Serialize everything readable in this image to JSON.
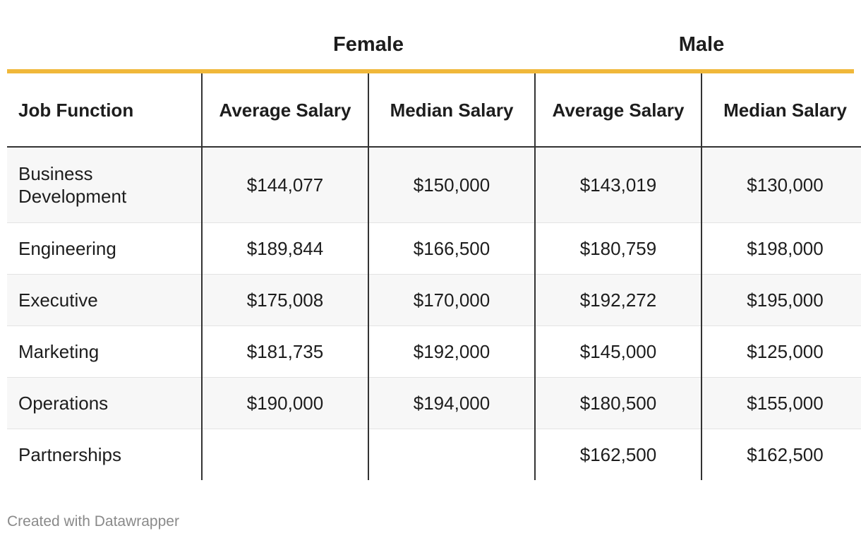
{
  "table": {
    "group_headers": [
      "Female",
      "Male"
    ],
    "accent_color": "#f0b83a",
    "column_headers": {
      "job": "Job Function",
      "female_avg": "Average Salary",
      "female_median": "Median Salary",
      "male_avg": "Average Salary",
      "male_median": "Median Salary"
    },
    "rows": [
      {
        "job": "Business Development",
        "female_avg": "$144,077",
        "female_median": "$150,000",
        "male_avg": "$143,019",
        "male_median": "$130,000"
      },
      {
        "job": "Engineering",
        "female_avg": "$189,844",
        "female_median": "$166,500",
        "male_avg": "$180,759",
        "male_median": "$198,000"
      },
      {
        "job": "Executive",
        "female_avg": "$175,008",
        "female_median": "$170,000",
        "male_avg": "$192,272",
        "male_median": "$195,000"
      },
      {
        "job": "Marketing",
        "female_avg": "$181,735",
        "female_median": "$192,000",
        "male_avg": "$145,000",
        "male_median": "$125,000"
      },
      {
        "job": "Operations",
        "female_avg": "$190,000",
        "female_median": "$194,000",
        "male_avg": "$180,500",
        "male_median": "$155,000"
      },
      {
        "job": "Partnerships",
        "female_avg": "",
        "female_median": "",
        "male_avg": "$162,500",
        "male_median": "$162,500"
      }
    ]
  },
  "chart_data": {
    "type": "table",
    "columns": [
      "Job Function",
      "Female Average Salary",
      "Female Median Salary",
      "Male Average Salary",
      "Male Median Salary"
    ],
    "rows": [
      [
        "Business Development",
        144077,
        150000,
        143019,
        130000
      ],
      [
        "Engineering",
        189844,
        166500,
        180759,
        198000
      ],
      [
        "Executive",
        175008,
        170000,
        192272,
        195000
      ],
      [
        "Marketing",
        181735,
        192000,
        145000,
        125000
      ],
      [
        "Operations",
        190000,
        194000,
        180500,
        155000
      ],
      [
        "Partnerships",
        null,
        null,
        162500,
        162500
      ]
    ]
  },
  "footer": {
    "credit": "Created with Datawrapper"
  }
}
